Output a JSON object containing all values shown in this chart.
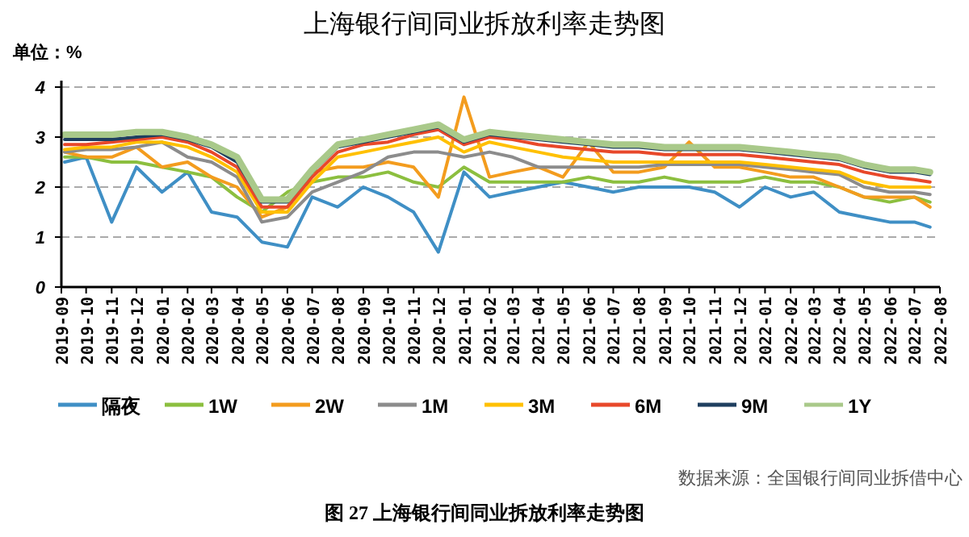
{
  "chart_data": {
    "type": "line",
    "title": "上海银行间同业拆放利率走势图",
    "ylabel": "单位：%",
    "x": [
      "2019-09-05",
      "2019-10-01",
      "2019-11-01",
      "2019-12-01",
      "2020-01-01",
      "2020-02-01",
      "2020-03-01",
      "2020-04-01",
      "2020-05-01",
      "2020-06-01",
      "2020-07-01",
      "2020-08-01",
      "2020-09-01",
      "2020-10-01",
      "2020-11-01",
      "2020-12-01",
      "2021-01-01",
      "2021-02-01",
      "2021-03-01",
      "2021-04-01",
      "2021-05-01",
      "2021-06-01",
      "2021-07-01",
      "2021-08-01",
      "2021-09-01",
      "2021-10-01",
      "2021-11-01",
      "2021-12-01",
      "2022-01-01",
      "2022-02-01",
      "2022-03-01",
      "2022-04-01",
      "2022-05-01",
      "2022-06-01",
      "2022-07-01",
      "2022-07-20"
    ],
    "series": [
      {
        "name": "隔夜",
        "color": "#3f8fc5",
        "values": [
          2.5,
          2.6,
          1.3,
          2.4,
          1.9,
          2.3,
          1.5,
          1.4,
          0.9,
          0.8,
          1.8,
          1.6,
          2.0,
          1.8,
          1.5,
          0.7,
          2.3,
          1.8,
          1.9,
          2.0,
          2.1,
          2.0,
          1.9,
          2.0,
          2.0,
          2.0,
          1.9,
          1.6,
          2.0,
          1.8,
          1.9,
          1.5,
          1.4,
          1.3,
          1.3,
          1.2
        ]
      },
      {
        "name": "1W",
        "color": "#8cbf3f",
        "values": [
          2.6,
          2.6,
          2.5,
          2.5,
          2.4,
          2.3,
          2.2,
          1.8,
          1.5,
          1.9,
          2.1,
          2.2,
          2.2,
          2.3,
          2.1,
          2.0,
          2.4,
          2.1,
          2.1,
          2.1,
          2.1,
          2.2,
          2.1,
          2.1,
          2.2,
          2.1,
          2.1,
          2.1,
          2.2,
          2.1,
          2.1,
          2.0,
          1.8,
          1.7,
          1.8,
          1.7
        ]
      },
      {
        "name": "2W",
        "color": "#f39c1e",
        "values": [
          2.7,
          2.6,
          2.6,
          2.8,
          2.4,
          2.5,
          2.2,
          2.0,
          1.4,
          1.6,
          2.3,
          2.4,
          2.4,
          2.5,
          2.4,
          1.8,
          3.8,
          2.2,
          2.3,
          2.4,
          2.2,
          2.9,
          2.3,
          2.3,
          2.4,
          2.9,
          2.4,
          2.4,
          2.3,
          2.2,
          2.2,
          2.0,
          1.8,
          1.8,
          1.8,
          1.6
        ]
      },
      {
        "name": "1M",
        "color": "#8c8c8c",
        "values": [
          2.7,
          2.75,
          2.75,
          2.8,
          2.9,
          2.6,
          2.5,
          2.2,
          1.3,
          1.4,
          1.9,
          2.1,
          2.3,
          2.6,
          2.7,
          2.7,
          2.6,
          2.7,
          2.6,
          2.4,
          2.4,
          2.4,
          2.4,
          2.4,
          2.45,
          2.45,
          2.45,
          2.45,
          2.4,
          2.35,
          2.3,
          2.25,
          2.0,
          1.9,
          1.9,
          1.85
        ]
      },
      {
        "name": "3M",
        "color": "#ffc000",
        "values": [
          2.75,
          2.8,
          2.8,
          2.9,
          2.9,
          2.8,
          2.6,
          2.3,
          1.5,
          1.5,
          2.1,
          2.6,
          2.7,
          2.8,
          2.9,
          3.0,
          2.7,
          2.9,
          2.8,
          2.7,
          2.6,
          2.55,
          2.5,
          2.5,
          2.5,
          2.5,
          2.5,
          2.5,
          2.45,
          2.4,
          2.35,
          2.3,
          2.1,
          2.0,
          2.0,
          2.0
        ]
      },
      {
        "name": "6M",
        "color": "#e8482a",
        "values": [
          2.85,
          2.85,
          2.9,
          2.95,
          3.0,
          2.9,
          2.7,
          2.4,
          1.6,
          1.6,
          2.2,
          2.7,
          2.85,
          2.9,
          3.05,
          3.15,
          2.85,
          3.0,
          2.95,
          2.85,
          2.8,
          2.75,
          2.7,
          2.7,
          2.65,
          2.65,
          2.65,
          2.65,
          2.6,
          2.55,
          2.5,
          2.45,
          2.3,
          2.2,
          2.15,
          2.1
        ]
      },
      {
        "name": "9M",
        "color": "#1f3f5f",
        "values": [
          2.95,
          2.95,
          2.95,
          3.0,
          3.05,
          2.95,
          2.8,
          2.5,
          1.7,
          1.7,
          2.3,
          2.8,
          2.9,
          3.0,
          3.1,
          3.2,
          2.9,
          3.05,
          3.0,
          2.95,
          2.9,
          2.85,
          2.8,
          2.8,
          2.75,
          2.75,
          2.75,
          2.75,
          2.7,
          2.65,
          2.6,
          2.55,
          2.4,
          2.3,
          2.3,
          2.25
        ]
      },
      {
        "name": "1Y",
        "color": "#a9c98a",
        "values": [
          3.05,
          3.05,
          3.05,
          3.1,
          3.1,
          3.0,
          2.85,
          2.6,
          1.75,
          1.75,
          2.35,
          2.85,
          2.95,
          3.05,
          3.15,
          3.25,
          2.95,
          3.1,
          3.05,
          3.0,
          2.95,
          2.9,
          2.85,
          2.85,
          2.8,
          2.8,
          2.8,
          2.8,
          2.75,
          2.7,
          2.65,
          2.6,
          2.45,
          2.35,
          2.35,
          2.3
        ]
      }
    ],
    "xlim": [
      "2019-09",
      "2022-08"
    ],
    "xticks": [
      "2019-09",
      "2019-10",
      "2019-11",
      "2019-12",
      "2020-01",
      "2020-02",
      "2020-03",
      "2020-04",
      "2020-05",
      "2020-06",
      "2020-07",
      "2020-08",
      "2020-09",
      "2020-10",
      "2020-11",
      "2020-12",
      "2021-01",
      "2021-02",
      "2021-03",
      "2021-04",
      "2021-05",
      "2021-06",
      "2021-07",
      "2021-08",
      "2021-09",
      "2021-10",
      "2021-11",
      "2021-12",
      "2022-01",
      "2022-02",
      "2022-03",
      "2022-04",
      "2022-05",
      "2022-06",
      "2022-07",
      "2022-08"
    ],
    "ylim": [
      0,
      4
    ],
    "yticks": [
      0,
      1,
      2,
      3,
      4
    ],
    "grid": "y",
    "legend": "bottom",
    "line_style": "solid",
    "marker": "none",
    "annotations": [
      "数据来源：全国银行间同业拆借中心",
      "图 27   上海银行间同业拆放利率走势图"
    ]
  }
}
